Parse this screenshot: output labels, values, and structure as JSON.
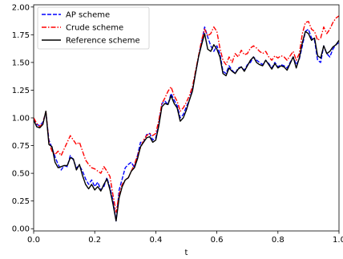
{
  "chart_data": {
    "type": "line",
    "title": "",
    "xlabel": "t",
    "ylabel": "",
    "xlim": [
      0.0,
      1.0
    ],
    "ylim": [
      -0.02,
      2.02
    ],
    "xticks": [
      "0.0",
      "0.2",
      "0.4",
      "0.6",
      "0.8",
      "1.0"
    ],
    "yticks": [
      "0.00",
      "0.25",
      "0.50",
      "0.75",
      "1.00",
      "1.25",
      "1.50",
      "1.75",
      "2.00"
    ],
    "grid": false,
    "legend_position": "top-left",
    "x": [
      0.0,
      0.01,
      0.02,
      0.03,
      0.04,
      0.05,
      0.06,
      0.07,
      0.08,
      0.09,
      0.1,
      0.11,
      0.12,
      0.13,
      0.14,
      0.15,
      0.16,
      0.17,
      0.18,
      0.19,
      0.2,
      0.21,
      0.22,
      0.23,
      0.24,
      0.25,
      0.26,
      0.27,
      0.28,
      0.29,
      0.3,
      0.31,
      0.32,
      0.33,
      0.34,
      0.35,
      0.36,
      0.37,
      0.38,
      0.39,
      0.4,
      0.41,
      0.42,
      0.43,
      0.44,
      0.45,
      0.46,
      0.47,
      0.48,
      0.49,
      0.5,
      0.51,
      0.52,
      0.53,
      0.54,
      0.55,
      0.56,
      0.57,
      0.58,
      0.59,
      0.6,
      0.61,
      0.62,
      0.63,
      0.64,
      0.65,
      0.66,
      0.67,
      0.68,
      0.69,
      0.7,
      0.71,
      0.72,
      0.73,
      0.74,
      0.75,
      0.76,
      0.77,
      0.78,
      0.79,
      0.8,
      0.81,
      0.82,
      0.83,
      0.84,
      0.85,
      0.86,
      0.87,
      0.88,
      0.89,
      0.9,
      0.91,
      0.92,
      0.93,
      0.94,
      0.95,
      0.96,
      0.97,
      0.98,
      0.99,
      1.0
    ],
    "series": [
      {
        "name": "AP scheme",
        "color": "#0000ff",
        "dash": "dashed",
        "values": [
          0.99,
          0.94,
          0.93,
          0.96,
          1.05,
          0.8,
          0.73,
          0.65,
          0.58,
          0.53,
          0.57,
          0.56,
          0.66,
          0.62,
          0.55,
          0.57,
          0.52,
          0.45,
          0.4,
          0.44,
          0.38,
          0.42,
          0.35,
          0.38,
          0.46,
          0.37,
          0.25,
          0.07,
          0.35,
          0.45,
          0.55,
          0.58,
          0.6,
          0.55,
          0.66,
          0.78,
          0.78,
          0.85,
          0.86,
          0.8,
          0.82,
          0.95,
          1.13,
          1.15,
          1.12,
          1.22,
          1.16,
          1.11,
          1.0,
          1.03,
          1.1,
          1.16,
          1.26,
          1.4,
          1.55,
          1.68,
          1.82,
          1.73,
          1.65,
          1.6,
          1.65,
          1.58,
          1.42,
          1.4,
          1.47,
          1.43,
          1.4,
          1.45,
          1.46,
          1.43,
          1.48,
          1.5,
          1.55,
          1.52,
          1.5,
          1.48,
          1.52,
          1.49,
          1.45,
          1.5,
          1.46,
          1.48,
          1.47,
          1.45,
          1.5,
          1.55,
          1.48,
          1.53,
          1.65,
          1.78,
          1.8,
          1.72,
          1.7,
          1.52,
          1.5,
          1.65,
          1.58,
          1.55,
          1.62,
          1.66,
          1.68
        ]
      },
      {
        "name": "Crude scheme",
        "color": "#ff0000",
        "dash": "dashdot",
        "values": [
          1.0,
          0.95,
          0.92,
          0.95,
          1.06,
          0.78,
          0.7,
          0.67,
          0.7,
          0.66,
          0.72,
          0.78,
          0.84,
          0.8,
          0.76,
          0.78,
          0.7,
          0.62,
          0.58,
          0.55,
          0.54,
          0.52,
          0.5,
          0.56,
          0.52,
          0.47,
          0.3,
          0.15,
          0.31,
          0.4,
          0.44,
          0.46,
          0.52,
          0.58,
          0.66,
          0.73,
          0.8,
          0.84,
          0.86,
          0.84,
          0.86,
          0.98,
          1.13,
          1.18,
          1.24,
          1.28,
          1.2,
          1.15,
          1.06,
          1.09,
          1.14,
          1.2,
          1.28,
          1.42,
          1.56,
          1.7,
          1.8,
          1.74,
          1.76,
          1.82,
          1.78,
          1.63,
          1.52,
          1.48,
          1.55,
          1.5,
          1.58,
          1.55,
          1.61,
          1.57,
          1.58,
          1.63,
          1.65,
          1.63,
          1.6,
          1.58,
          1.6,
          1.55,
          1.52,
          1.56,
          1.54,
          1.56,
          1.55,
          1.52,
          1.56,
          1.6,
          1.52,
          1.58,
          1.76,
          1.86,
          1.87,
          1.8,
          1.78,
          1.7,
          1.72,
          1.82,
          1.76,
          1.8,
          1.86,
          1.9,
          1.92
        ]
      },
      {
        "name": "Reference scheme",
        "color": "#000000",
        "dash": "solid",
        "values": [
          0.98,
          0.92,
          0.91,
          0.94,
          1.06,
          0.76,
          0.74,
          0.6,
          0.55,
          0.56,
          0.57,
          0.57,
          0.64,
          0.63,
          0.53,
          0.58,
          0.48,
          0.4,
          0.36,
          0.4,
          0.35,
          0.38,
          0.34,
          0.4,
          0.45,
          0.35,
          0.22,
          0.07,
          0.28,
          0.38,
          0.44,
          0.46,
          0.52,
          0.55,
          0.63,
          0.74,
          0.78,
          0.82,
          0.83,
          0.78,
          0.8,
          0.93,
          1.1,
          1.13,
          1.12,
          1.2,
          1.13,
          1.09,
          0.97,
          1.0,
          1.07,
          1.16,
          1.24,
          1.4,
          1.55,
          1.66,
          1.76,
          1.62,
          1.6,
          1.66,
          1.62,
          1.55,
          1.4,
          1.38,
          1.45,
          1.42,
          1.4,
          1.44,
          1.46,
          1.42,
          1.47,
          1.52,
          1.55,
          1.5,
          1.48,
          1.47,
          1.52,
          1.48,
          1.44,
          1.49,
          1.45,
          1.47,
          1.46,
          1.43,
          1.49,
          1.55,
          1.45,
          1.54,
          1.68,
          1.78,
          1.76,
          1.7,
          1.72,
          1.56,
          1.54,
          1.65,
          1.58,
          1.6,
          1.64,
          1.66,
          1.7
        ]
      }
    ]
  }
}
